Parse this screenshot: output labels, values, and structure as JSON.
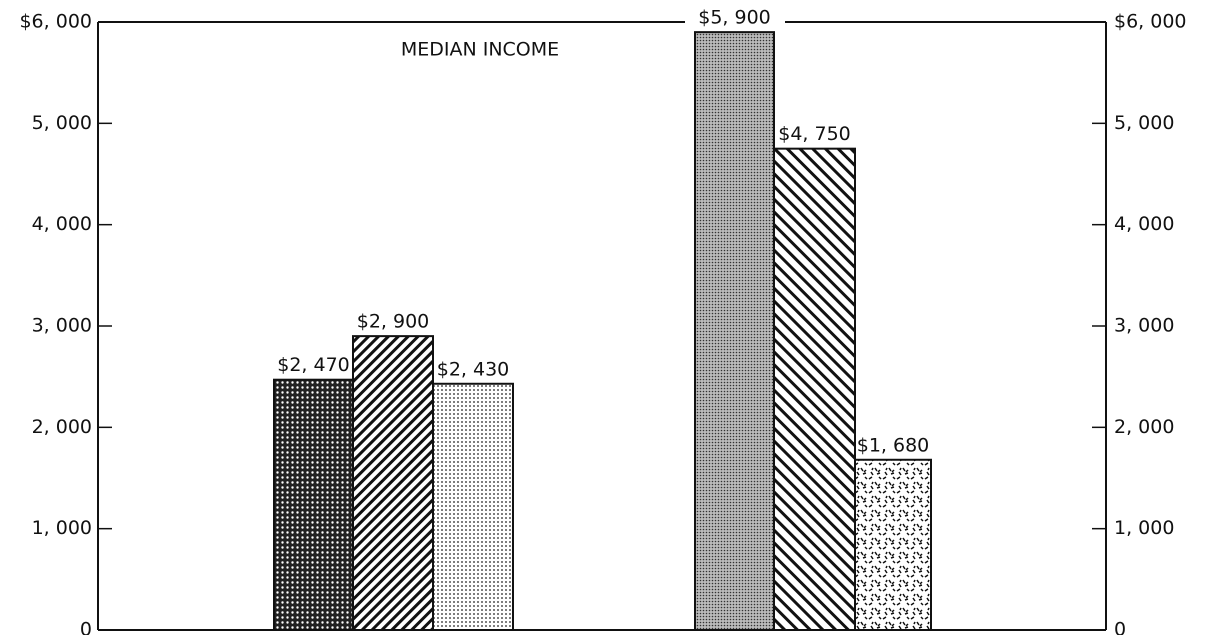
{
  "chart_data": {
    "type": "bar",
    "title": "MEDIAN INCOME",
    "categories": [
      null,
      null,
      null,
      null,
      null,
      null
    ],
    "values": [
      2470,
      2900,
      2430,
      5900,
      4750,
      1680
    ],
    "value_labels": [
      "$2, 470",
      "$2, 900",
      "$2, 430",
      "$5, 900",
      "$4, 750",
      "$1, 680"
    ],
    "patterns": [
      "dense-dots",
      "diagonal-right",
      "fine-dots",
      "gray-dots",
      "diagonal-left",
      "speckle"
    ],
    "ylim": [
      0,
      6000
    ],
    "yticks": [
      0,
      {
        "value": 1000,
        "label": "1, 000"
      },
      {
        "value": 2000,
        "label": "2, 000"
      },
      {
        "value": 3000,
        "label": "3, 000"
      },
      {
        "value": 4000,
        "label": "4, 000"
      },
      {
        "value": 5000,
        "label": "5, 000"
      },
      {
        "value": 6000,
        "label": "$6, 000"
      }
    ],
    "secondary_axis": true
  }
}
